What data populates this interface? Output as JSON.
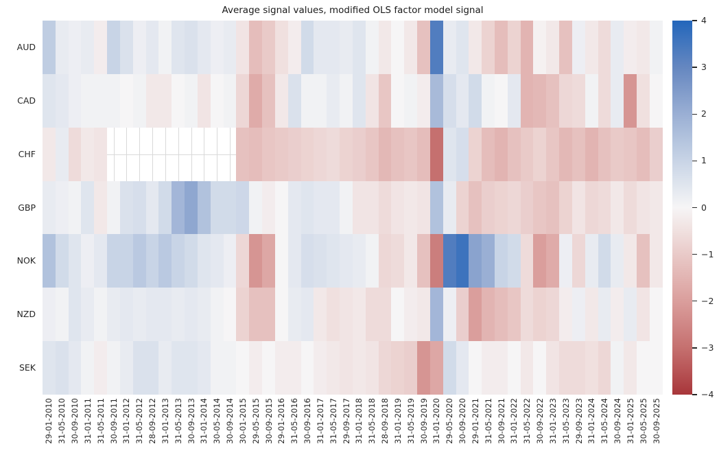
{
  "title": "Average signal values, modified OLS factor model signal",
  "chart_data": {
    "type": "heatmap",
    "title": "Average signal values, modified OLS factor model signal",
    "x_note": "monthly columns from Jan-2010 to Sep-2025; axis labels every 4 months; values estimated from cell colors at each labelled tick date",
    "x_tick_labels": [
      "29-01-2010",
      "31-05-2010",
      "30-09-2010",
      "31-01-2011",
      "31-05-2011",
      "30-09-2011",
      "31-01-2012",
      "31-05-2012",
      "28-09-2012",
      "31-01-2013",
      "31-05-2013",
      "30-09-2013",
      "31-01-2014",
      "30-05-2014",
      "30-09-2014",
      "30-01-2015",
      "29-05-2015",
      "30-09-2015",
      "29-01-2016",
      "31-05-2016",
      "30-09-2016",
      "31-01-2017",
      "31-05-2017",
      "29-09-2017",
      "31-01-2018",
      "31-05-2018",
      "28-09-2018",
      "31-01-2019",
      "31-05-2019",
      "30-09-2019",
      "31-01-2020",
      "29-05-2020",
      "30-09-2020",
      "29-01-2021",
      "31-05-2021",
      "30-09-2021",
      "31-01-2022",
      "31-05-2022",
      "30-09-2022",
      "31-01-2023",
      "31-05-2023",
      "29-09-2023",
      "31-01-2024",
      "31-05-2024",
      "30-09-2024",
      "31-01-2025",
      "30-05-2025",
      "30-09-2025"
    ],
    "rows": [
      {
        "label": "AUD",
        "values": [
          1.2,
          0.3,
          0.2,
          0.3,
          -0.2,
          1.0,
          0.6,
          0.2,
          0.4,
          0.1,
          0.5,
          0.6,
          0.4,
          0.2,
          0.3,
          -0.4,
          -1.3,
          -1.0,
          -0.5,
          -0.2,
          0.8,
          0.4,
          0.4,
          0.3,
          0.5,
          0.1,
          -0.3,
          0.0,
          -0.3,
          -1.2,
          3.3,
          0.3,
          0.5,
          -0.3,
          -0.8,
          -1.3,
          -0.8,
          -1.5,
          -0.1,
          -0.3,
          -1.2,
          0.2,
          -0.3,
          -0.6,
          0.3,
          -0.2,
          -0.3,
          0.1
        ]
      },
      {
        "label": "CAD",
        "values": [
          0.5,
          0.4,
          0.2,
          0.1,
          0.1,
          0.1,
          0.0,
          0.1,
          -0.3,
          -0.3,
          0.0,
          0.1,
          -0.4,
          0.0,
          0.1,
          -0.7,
          -1.7,
          -1.2,
          -0.3,
          0.6,
          0.1,
          0.1,
          0.3,
          0.1,
          0.5,
          -0.4,
          -1.1,
          0.0,
          0.1,
          -0.2,
          1.7,
          0.7,
          0.4,
          0.8,
          0.1,
          0.0,
          0.4,
          -1.5,
          -1.4,
          -1.2,
          -0.7,
          -0.6,
          0.1,
          -0.6,
          0.3,
          -2.2,
          -0.5,
          0.0
        ]
      },
      {
        "label": "CHF",
        "values": [
          -0.3,
          0.3,
          -0.6,
          -0.3,
          -0.4,
          null,
          null,
          null,
          null,
          null,
          null,
          null,
          null,
          null,
          null,
          -1.2,
          -1.3,
          -1.1,
          -1.0,
          -0.9,
          -0.8,
          -0.7,
          -0.6,
          -0.8,
          -0.9,
          -1.1,
          -1.4,
          -1.2,
          -1.1,
          -1.3,
          -3.0,
          0.5,
          0.7,
          -0.8,
          -1.3,
          -1.5,
          -1.2,
          -1.0,
          -0.8,
          -1.1,
          -1.4,
          -1.2,
          -1.5,
          -1.2,
          -1.0,
          -1.1,
          -1.3,
          -0.9
        ]
      },
      {
        "label": "GBP",
        "values": [
          0.3,
          0.2,
          0.1,
          0.5,
          -0.3,
          0.1,
          0.6,
          0.7,
          0.4,
          0.8,
          1.8,
          2.2,
          1.5,
          0.8,
          0.8,
          0.9,
          0.1,
          -0.2,
          0.0,
          0.4,
          0.5,
          0.4,
          0.4,
          0.1,
          -0.4,
          -0.4,
          -0.6,
          -0.4,
          -0.3,
          -0.4,
          1.5,
          0.3,
          -0.8,
          -1.2,
          -0.9,
          -0.8,
          -0.7,
          -0.9,
          -1.1,
          -1.2,
          -0.8,
          -0.4,
          -0.7,
          -0.6,
          -0.3,
          -0.6,
          -0.4,
          -0.3
        ]
      },
      {
        "label": "NOK",
        "values": [
          1.5,
          0.8,
          0.5,
          0.2,
          0.4,
          1.0,
          1.0,
          1.3,
          1.0,
          1.3,
          1.0,
          0.8,
          0.5,
          0.4,
          0.2,
          -0.7,
          -2.2,
          -1.8,
          0.0,
          0.4,
          0.7,
          0.6,
          0.5,
          0.4,
          0.3,
          0.1,
          -0.7,
          -0.6,
          -0.3,
          -1.2,
          -2.7,
          3.3,
          3.6,
          2.3,
          2.0,
          1.0,
          0.8,
          -0.6,
          -2.0,
          -1.7,
          0.2,
          -0.7,
          0.3,
          0.8,
          0.3,
          -0.3,
          -1.2,
          -0.3
        ]
      },
      {
        "label": "NZD",
        "values": [
          0.2,
          0.1,
          0.5,
          0.3,
          0.1,
          0.3,
          0.4,
          0.3,
          0.4,
          0.4,
          0.3,
          0.4,
          0.3,
          0.1,
          0.0,
          -0.8,
          -1.2,
          -1.2,
          0.0,
          0.3,
          0.4,
          -0.3,
          -0.5,
          -0.4,
          -0.3,
          -0.6,
          -0.6,
          0.0,
          -0.2,
          -0.3,
          1.8,
          0.2,
          -0.9,
          -2.0,
          -1.5,
          -1.3,
          -1.1,
          -0.6,
          -0.8,
          -0.7,
          -0.2,
          0.2,
          -0.3,
          0.3,
          -0.2,
          0.3,
          -0.4,
          0.0
        ]
      },
      {
        "label": "SEK",
        "values": [
          0.5,
          0.6,
          0.4,
          0.1,
          -0.2,
          0.1,
          0.3,
          0.6,
          0.6,
          0.3,
          0.5,
          0.5,
          0.4,
          0.1,
          0.1,
          0.0,
          -0.2,
          0.0,
          -0.2,
          -0.2,
          0.0,
          -0.2,
          -0.3,
          -0.4,
          -0.3,
          -0.4,
          -0.7,
          -0.8,
          -0.9,
          -2.2,
          -1.8,
          0.8,
          0.4,
          0.0,
          -0.2,
          -0.2,
          0.0,
          -0.3,
          0.0,
          -0.4,
          -0.6,
          -0.6,
          -0.5,
          -0.7,
          0.1,
          -0.3,
          0.0,
          0.0
        ]
      }
    ],
    "missing_data": {
      "row": "CHF",
      "from": "30-09-2011",
      "to": "30-09-2014",
      "rendered_as": "blank white cells with light grid lines"
    },
    "colorbar": {
      "min": -4,
      "max": 4,
      "ticks": [
        4,
        3,
        2,
        1,
        0,
        -1,
        -2,
        -3,
        -4
      ],
      "colormap": "diverging red-white-blue (seaborn vlag reversed)",
      "negative_color": "#a8363a",
      "zero_color": "#f6f5f6",
      "positive_color": "#2366bb",
      "position": "right"
    },
    "grid": false
  }
}
